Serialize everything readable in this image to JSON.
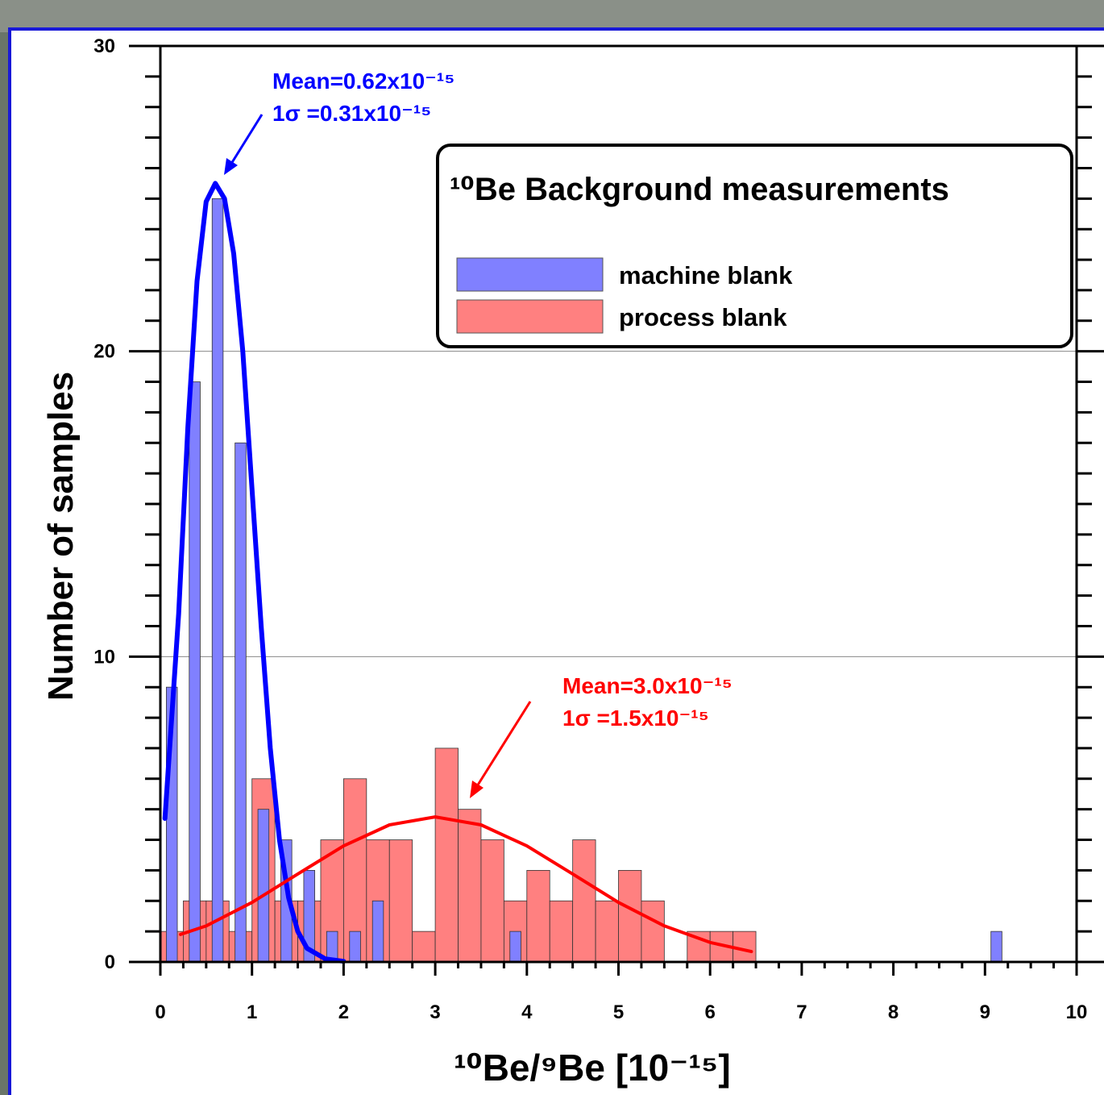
{
  "chart_data": {
    "type": "histogram",
    "xlabel": "¹⁰Be/⁹Be [10⁻¹⁵]",
    "ylabel": "Number of samples",
    "legend_title": "¹⁰Be Background measurements",
    "legend": "upper right",
    "xlim": [
      0,
      10
    ],
    "ylim": [
      0,
      30
    ],
    "xticks": [
      0,
      1,
      2,
      3,
      4,
      5,
      6,
      7,
      8,
      9,
      10
    ],
    "yticks": [
      0,
      10,
      20,
      30
    ],
    "grid": true,
    "series": [
      {
        "name": "machine blank",
        "color": "#8080ff",
        "bins": [
          0,
          0.25,
          0.5,
          0.75,
          1,
          1.25,
          1.5,
          1.75,
          2,
          2.25,
          2.5,
          2.75,
          3,
          3.25,
          3.5,
          3.75,
          4,
          4.25,
          4.5,
          4.75,
          5,
          5.25,
          5.5,
          5.75,
          6,
          6.25,
          6.5,
          6.75,
          7,
          7.25,
          7.5,
          7.75,
          8,
          8.25,
          8.5,
          8.75,
          9,
          9.25
        ],
        "values": [
          9,
          19,
          25,
          17,
          5,
          4,
          3,
          1,
          1,
          2,
          0,
          0,
          0,
          0,
          0,
          1,
          0,
          0,
          0,
          0,
          0,
          0,
          0,
          0,
          0,
          0,
          0,
          0,
          0,
          0,
          0,
          0,
          0,
          0,
          0,
          0,
          1
        ]
      },
      {
        "name": "process blank",
        "color": "#ff8080",
        "bins": [
          0,
          0.25,
          0.5,
          0.75,
          1,
          1.25,
          1.5,
          1.75,
          2,
          2.25,
          2.5,
          2.75,
          3,
          3.25,
          3.5,
          3.75,
          4,
          4.25,
          4.5,
          4.75,
          5,
          5.25,
          5.5,
          5.75,
          6,
          6.25,
          6.5
        ],
        "values": [
          1,
          2,
          2,
          1,
          6,
          2,
          2,
          4,
          6,
          4,
          4,
          1,
          7,
          5,
          4,
          2,
          3,
          2,
          4,
          2,
          3,
          2,
          0,
          1,
          1,
          1
        ]
      }
    ],
    "fits": [
      {
        "color": "#0000ff",
        "x": [
          0.05,
          0.2,
          0.3,
          0.4,
          0.5,
          0.6,
          0.7,
          0.8,
          0.9,
          1.0,
          1.1,
          1.2,
          1.3,
          1.4,
          1.5,
          1.6,
          1.8,
          2.0
        ],
        "values": [
          4.7,
          11.4,
          17.5,
          22.3,
          24.9,
          25.5,
          25.0,
          23.2,
          20.0,
          15.5,
          11.0,
          7.0,
          4.0,
          2.1,
          1.0,
          0.45,
          0.1,
          0.02
        ]
      },
      {
        "color": "#ff0000",
        "x": [
          0.22,
          0.5,
          1,
          1.5,
          2,
          2.5,
          3,
          3.5,
          4,
          4.5,
          5,
          5.5,
          6,
          6.45
        ],
        "values": [
          0.9,
          1.18,
          1.95,
          2.88,
          3.8,
          4.49,
          4.75,
          4.49,
          3.8,
          2.88,
          1.95,
          1.18,
          0.64,
          0.34
        ]
      }
    ],
    "annotations": [
      {
        "lines": [
          "Mean=0.62x10⁻¹⁵",
          "1σ =0.31x10⁻¹⁵"
        ],
        "color": "#0000ff"
      },
      {
        "lines": [
          "Mean=3.0x10⁻¹⁵",
          "1σ =1.5x10⁻¹⁵"
        ],
        "color": "#ff0000"
      }
    ]
  }
}
